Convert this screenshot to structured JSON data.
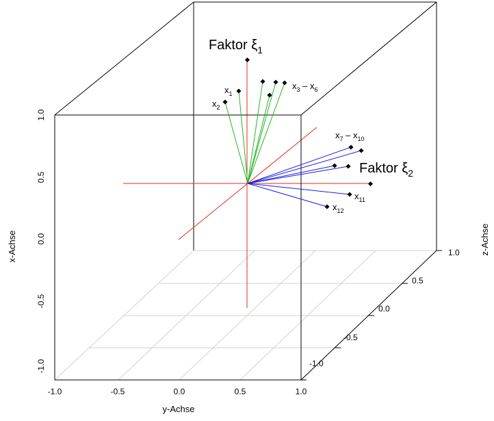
{
  "chart_data": {
    "type": "scatter",
    "title": "",
    "axes": {
      "x": {
        "label": "x-Achse",
        "range": [
          -1.0,
          1.0
        ],
        "ticks": [
          "-1.0",
          "-0.5",
          "0.0",
          "0.5",
          "1.0"
        ]
      },
      "y": {
        "label": "y-Achse",
        "range": [
          -1.0,
          1.0
        ],
        "ticks": [
          "-1.0",
          "-0.5",
          "0.0",
          "0.5",
          "1.0"
        ]
      },
      "z": {
        "label": "z-Achse",
        "range": [
          -1.0,
          1.0
        ],
        "ticks": [
          "-1.0",
          "-0.5",
          "0.0",
          "0.5",
          "1.0"
        ]
      }
    },
    "grid": "floor",
    "factors": [
      {
        "name": "Faktor ξ1",
        "text": "Faktor ξ",
        "sub": "1",
        "color": "#e8281e"
      },
      {
        "name": "Faktor ξ2",
        "text": "Faktor ξ",
        "sub": "2",
        "color": "#e8281e"
      }
    ],
    "labels": [
      {
        "text": "x",
        "sub": "1"
      },
      {
        "text": "x",
        "sub": "2"
      },
      {
        "text": "x",
        "sub": "3",
        "range_to": " – x",
        "sub2": "6"
      },
      {
        "text": "x",
        "sub": "7",
        "range_to": " – x",
        "sub2": "10"
      },
      {
        "text": "x",
        "sub": "11"
      },
      {
        "text": "x",
        "sub": "12"
      }
    ],
    "series": [
      {
        "group": "xi1",
        "color": "#22b422",
        "count": 6
      },
      {
        "group": "xi2",
        "color": "#1a1ae6",
        "count": 6
      }
    ],
    "colors": {
      "box": "#000000",
      "grid": "#c8c8c8",
      "axes3d": "#e8281e",
      "xi1_vectors": "#22b422",
      "xi2_vectors": "#1a1ae6",
      "points": "#000000"
    }
  }
}
